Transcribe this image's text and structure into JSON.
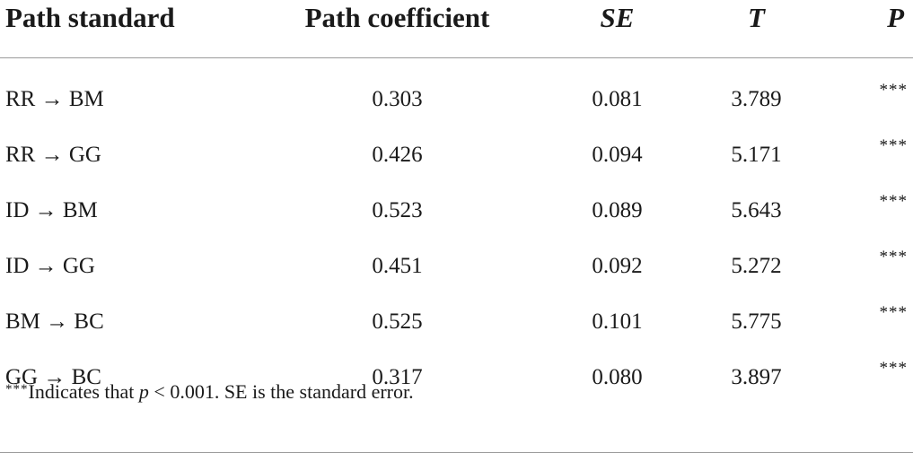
{
  "table": {
    "headers": {
      "path_standard": "Path standard",
      "path_coefficient": "Path coefficient",
      "se": "SE",
      "t": "T",
      "p": "P"
    },
    "rows": [
      {
        "path": "RR → BM",
        "coefficient": "0.303",
        "se": "0.081",
        "t": "3.789",
        "p": "***"
      },
      {
        "path": "RR → GG",
        "coefficient": "0.426",
        "se": "0.094",
        "t": "5.171",
        "p": "***"
      },
      {
        "path": "ID → BM",
        "coefficient": "0.523",
        "se": "0.089",
        "t": "5.643",
        "p": "***"
      },
      {
        "path": "ID → GG",
        "coefficient": "0.451",
        "se": "0.092",
        "t": "5.272",
        "p": "***"
      },
      {
        "path": "BM → BC",
        "coefficient": "0.525",
        "se": "0.101",
        "t": "5.775",
        "p": "***"
      },
      {
        "path": "GG → BC",
        "coefficient": "0.317",
        "se": "0.080",
        "t": "3.897",
        "p": "***"
      }
    ]
  },
  "footnote": {
    "stars": "***",
    "text_before": "Indicates that ",
    "p_symbol": "p",
    "text_after": " < 0.001. SE is the standard error."
  }
}
